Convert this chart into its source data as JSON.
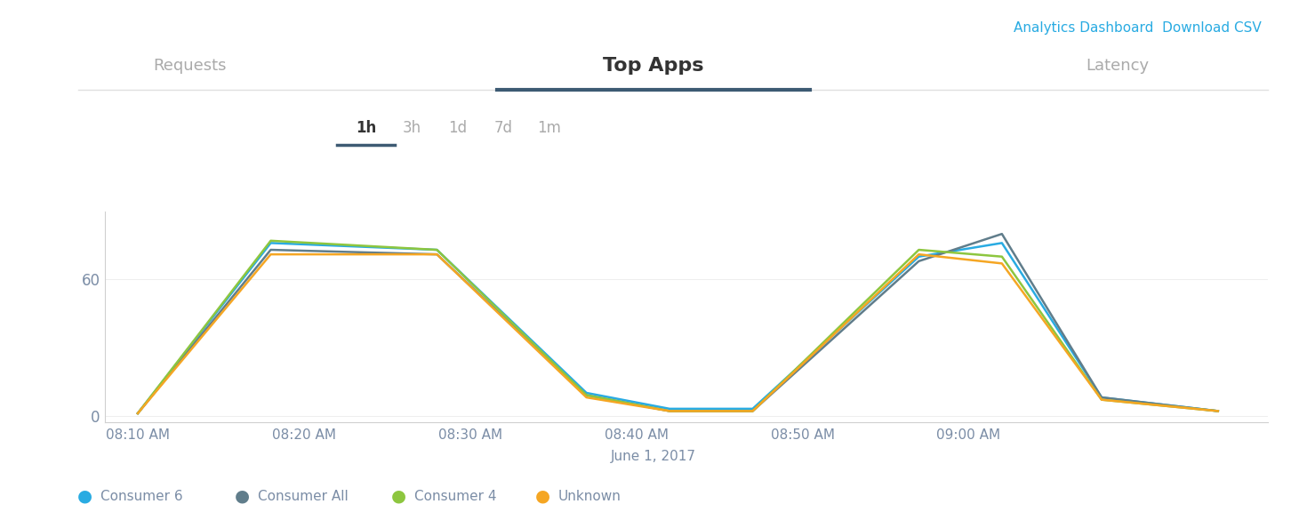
{
  "title": "Top Apps",
  "subtitle_left": "Requests",
  "subtitle_right": "Latency",
  "date_label": "June 1, 2017",
  "top_right_link": "Analytics Dashboard  Download CSV",
  "duration_options": [
    "1h",
    "3h",
    "1d",
    "7d",
    "1m"
  ],
  "active_duration": "1h",
  "x_labels": [
    "08:10 AM",
    "08:20 AM",
    "08:30 AM",
    "08:40 AM",
    "08:50 AM",
    "09:00 AM"
  ],
  "y_ticks": [
    0,
    60
  ],
  "ylim": [
    -3,
    90
  ],
  "x_data": [
    0,
    8,
    18,
    27,
    32,
    37,
    47,
    52,
    58,
    65
  ],
  "series": [
    {
      "name": "Consumer 6",
      "color": "#29ABE2",
      "y": [
        1,
        76,
        73,
        10,
        3,
        3,
        70,
        76,
        8,
        2
      ]
    },
    {
      "name": "Consumer All",
      "color": "#607D8B",
      "y": [
        1,
        73,
        71,
        9,
        2,
        2,
        68,
        80,
        8,
        2
      ]
    },
    {
      "name": "Consumer 4",
      "color": "#8DC63F",
      "y": [
        1,
        77,
        73,
        9,
        2,
        2,
        73,
        70,
        7,
        2
      ]
    },
    {
      "name": "Unknown",
      "color": "#F5A623",
      "y": [
        1,
        71,
        71,
        8,
        2,
        2,
        71,
        67,
        7,
        2
      ]
    }
  ],
  "x_tick_positions": [
    0,
    10,
    20,
    30,
    40,
    50,
    60
  ],
  "xlim": [
    -2,
    68
  ],
  "background_color": "#ffffff",
  "plot_bg_color": "#ffffff",
  "axis_color": "#d0d0d0",
  "tick_label_color": "#7B8DA6",
  "title_color": "#333333",
  "nav_color": "#aaaaaa",
  "active_nav_color": "#333333",
  "underline_color": "#3D5A73",
  "link_color": "#29ABE2",
  "line_width": 1.8,
  "separator_color": "#e0e0e0",
  "tab_underline_color": "#3D5A73"
}
